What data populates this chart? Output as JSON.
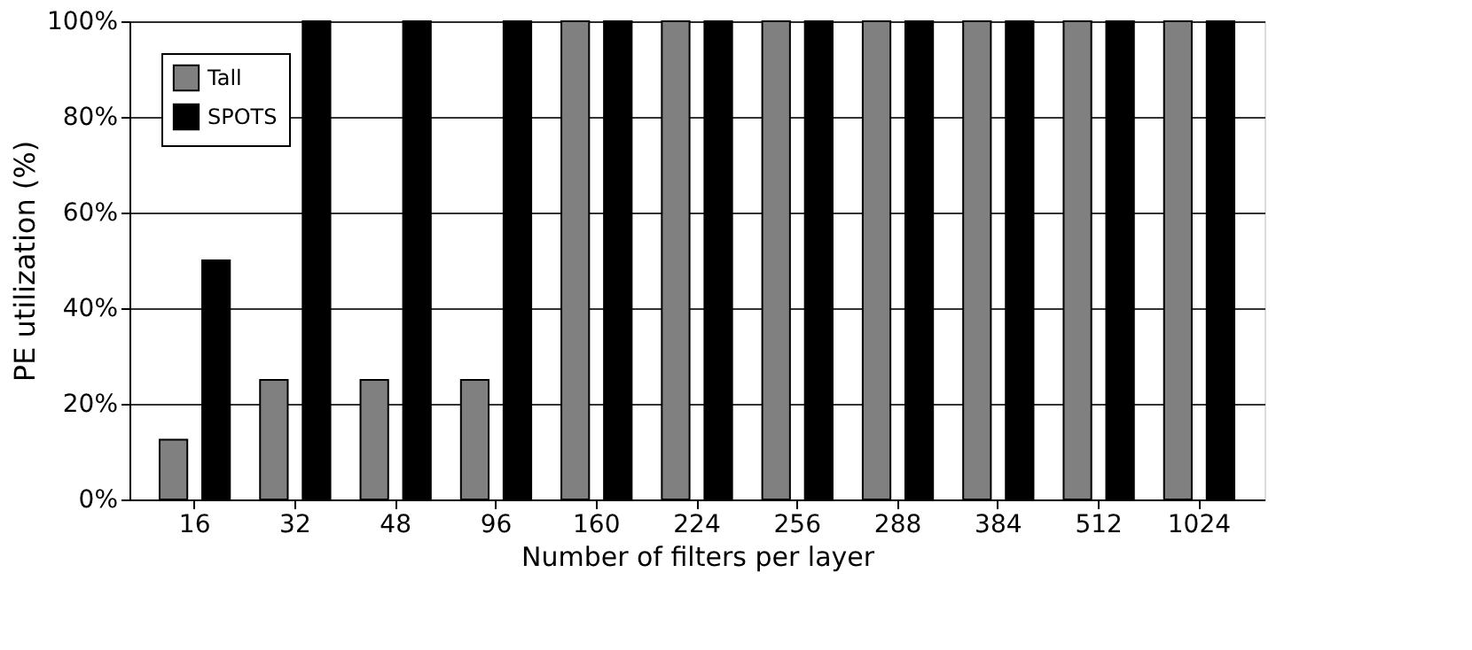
{
  "chart_data": {
    "type": "bar",
    "xlabel": "Number of filters per layer",
    "ylabel": "PE utilization (%)",
    "categories": [
      "16",
      "32",
      "48",
      "96",
      "160",
      "224",
      "256",
      "288",
      "384",
      "512",
      "1024"
    ],
    "series": [
      {
        "name": "Tall",
        "color": "#808080",
        "values": [
          12.5,
          25,
          25,
          25,
          100,
          100,
          100,
          100,
          100,
          100,
          100
        ]
      },
      {
        "name": "SPOTS",
        "color": "#000000",
        "values": [
          50,
          100,
          100,
          100,
          100,
          100,
          100,
          100,
          100,
          100,
          100
        ]
      }
    ],
    "ylim": [
      0,
      100
    ],
    "yticks": [
      {
        "value": 0,
        "label": "0%"
      },
      {
        "value": 20,
        "label": "20%"
      },
      {
        "value": 40,
        "label": "40%"
      },
      {
        "value": 60,
        "label": "60%"
      },
      {
        "value": 80,
        "label": "80%"
      },
      {
        "value": 100,
        "label": "100%"
      }
    ],
    "grid": "y",
    "legend": "top left"
  }
}
